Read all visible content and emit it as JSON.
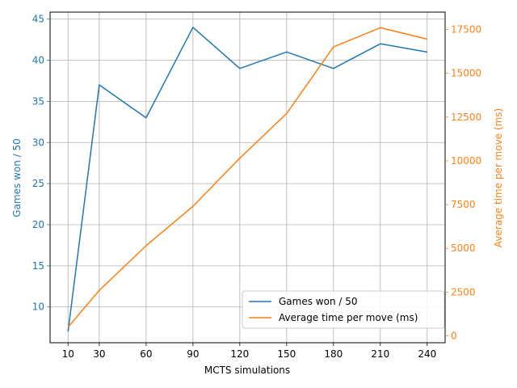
{
  "chart_data": {
    "type": "line",
    "xlabel": "MCTS simulations",
    "ylabel_left": "Games won / 50",
    "ylabel_right": "Average time per move (ms)",
    "x": [
      10,
      30,
      60,
      90,
      120,
      150,
      180,
      210,
      240
    ],
    "xticks": [
      "10",
      "30",
      "60",
      "90",
      "120",
      "150",
      "180",
      "210",
      "240"
    ],
    "series": [
      {
        "name": "Games won / 50",
        "axis": "left",
        "color": "#1f77b4",
        "values": [
          7,
          37,
          33,
          44,
          39,
          41,
          39,
          42,
          41
        ]
      },
      {
        "name": "Average time per move (ms)",
        "axis": "right",
        "color": "#ff7f0e",
        "values": [
          500,
          2600,
          5150,
          7400,
          10150,
          12700,
          16500,
          17600,
          16950
        ]
      }
    ],
    "ylim_left": [
      5.65,
      45.85
    ],
    "ylim_right": [
      -390,
      18490
    ],
    "yticks_left": [
      "10",
      "15",
      "20",
      "25",
      "30",
      "35",
      "40",
      "45"
    ],
    "yticks_right": [
      "0",
      "2500",
      "5000",
      "7500",
      "10000",
      "12500",
      "15000",
      "17500"
    ],
    "grid": true,
    "legend": "lower right"
  }
}
